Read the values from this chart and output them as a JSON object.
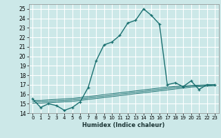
{
  "xlabel": "Humidex (Indice chaleur)",
  "bg_color": "#cce8e8",
  "grid_color": "#ffffff",
  "line_color": "#1a7070",
  "xlim": [
    -0.5,
    23.5
  ],
  "ylim": [
    14.0,
    25.5
  ],
  "yticks": [
    14,
    15,
    16,
    17,
    18,
    19,
    20,
    21,
    22,
    23,
    24,
    25
  ],
  "xticks": [
    0,
    1,
    2,
    3,
    4,
    5,
    6,
    7,
    8,
    9,
    10,
    11,
    12,
    13,
    14,
    15,
    16,
    17,
    18,
    19,
    20,
    21,
    22,
    23
  ],
  "main_x": [
    0,
    1,
    2,
    3,
    4,
    5,
    6,
    7,
    8,
    9,
    10,
    11,
    12,
    13,
    14,
    15,
    16,
    17,
    18,
    19,
    20,
    21,
    22,
    23
  ],
  "main_y": [
    15.5,
    14.6,
    15.0,
    14.8,
    14.3,
    14.6,
    15.2,
    16.7,
    19.5,
    21.2,
    21.5,
    22.2,
    23.5,
    23.8,
    25.0,
    24.3,
    23.4,
    17.0,
    17.2,
    16.8,
    17.4,
    16.5,
    17.0,
    17.0
  ],
  "line2_x": [
    0,
    1,
    2,
    3,
    4,
    5,
    6,
    7,
    8,
    9,
    10,
    11,
    12,
    13,
    14,
    15,
    16,
    17,
    18,
    19,
    20,
    21,
    22,
    23
  ],
  "line2_y": [
    15.05,
    15.05,
    15.1,
    15.15,
    15.2,
    15.25,
    15.35,
    15.45,
    15.55,
    15.65,
    15.75,
    15.85,
    15.95,
    16.05,
    16.15,
    16.25,
    16.35,
    16.45,
    16.55,
    16.65,
    16.75,
    16.8,
    16.85,
    16.9
  ],
  "line3_x": [
    0,
    1,
    2,
    3,
    4,
    5,
    6,
    7,
    8,
    9,
    10,
    11,
    12,
    13,
    14,
    15,
    16,
    17,
    18,
    19,
    20,
    21,
    22,
    23
  ],
  "line3_y": [
    15.2,
    15.2,
    15.25,
    15.3,
    15.35,
    15.4,
    15.5,
    15.6,
    15.7,
    15.8,
    15.9,
    16.0,
    16.1,
    16.2,
    16.3,
    16.4,
    16.5,
    16.6,
    16.7,
    16.78,
    16.85,
    16.9,
    16.95,
    17.0
  ],
  "line4_x": [
    0,
    1,
    2,
    3,
    4,
    5,
    6,
    7,
    8,
    9,
    10,
    11,
    12,
    13,
    14,
    15,
    16,
    17,
    18,
    19,
    20,
    21,
    22,
    23
  ],
  "line4_y": [
    15.35,
    15.35,
    15.4,
    15.45,
    15.5,
    15.55,
    15.65,
    15.75,
    15.85,
    15.95,
    16.05,
    16.15,
    16.25,
    16.35,
    16.45,
    16.55,
    16.65,
    16.75,
    16.82,
    16.88,
    16.92,
    16.95,
    16.98,
    17.02
  ]
}
